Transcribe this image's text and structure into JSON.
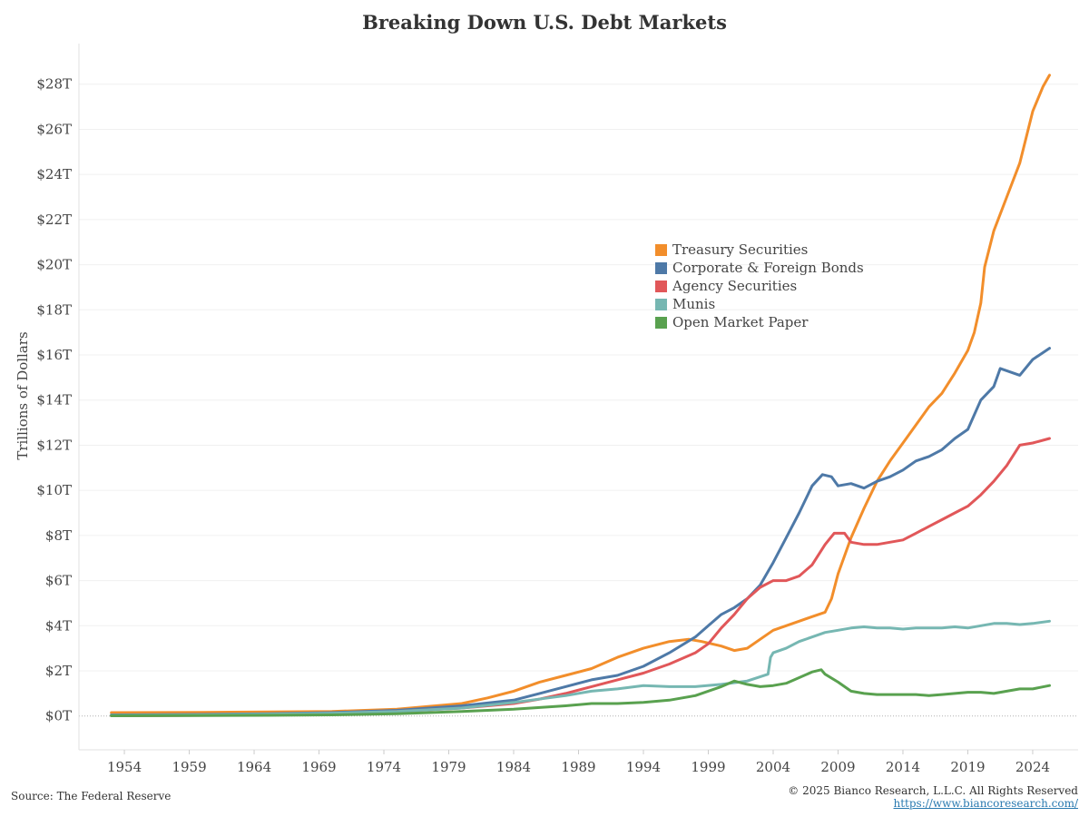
{
  "chart_data": {
    "type": "line",
    "title": "Breaking Down U.S. Debt Markets",
    "ylabel": "Trillions of Dollars",
    "xlabel": "",
    "xlim": [
      1950.5,
      2027.5
    ],
    "ylim": [
      -1.5,
      29.8
    ],
    "y_ticks": [
      0,
      2,
      4,
      6,
      8,
      10,
      12,
      14,
      16,
      18,
      20,
      22,
      24,
      26,
      28
    ],
    "y_tick_labels": [
      "$0T",
      "$2T",
      "$4T",
      "$6T",
      "$8T",
      "$10T",
      "$12T",
      "$14T",
      "$16T",
      "$18T",
      "$20T",
      "$22T",
      "$24T",
      "$26T",
      "$28T"
    ],
    "x_ticks": [
      1954,
      1959,
      1964,
      1969,
      1974,
      1979,
      1984,
      1989,
      1994,
      1999,
      2004,
      2009,
      2014,
      2019,
      2024
    ],
    "x_tick_labels": [
      "1954",
      "1959",
      "1964",
      "1969",
      "1974",
      "1979",
      "1984",
      "1989",
      "1994",
      "1999",
      "2004",
      "2009",
      "2014",
      "2019",
      "2024"
    ],
    "grid": "horizontal",
    "legend_position": "center-right",
    "series": [
      {
        "name": "Treasury Securities",
        "color": "#f28e2b",
        "x": [
          1953,
          1960,
          1965,
          1970,
          1975,
          1978,
          1980,
          1982,
          1984,
          1986,
          1988,
          1990,
          1992,
          1994,
          1996,
          1997.5,
          1998.5,
          2000,
          2001,
          2002,
          2003,
          2004,
          2005,
          2006,
          2007,
          2008,
          2008.5,
          2009,
          2010,
          2011,
          2012,
          2013,
          2014,
          2015,
          2016,
          2017,
          2018,
          2019,
          2019.5,
          2020,
          2020.3,
          2021,
          2022,
          2023,
          2024,
          2024.8,
          2025.3
        ],
        "values": [
          0.15,
          0.16,
          0.18,
          0.2,
          0.3,
          0.45,
          0.55,
          0.8,
          1.1,
          1.5,
          1.8,
          2.1,
          2.6,
          3.0,
          3.3,
          3.4,
          3.3,
          3.1,
          2.9,
          3.0,
          3.4,
          3.8,
          4.0,
          4.2,
          4.4,
          4.6,
          5.2,
          6.3,
          7.9,
          9.2,
          10.4,
          11.3,
          12.1,
          12.9,
          13.7,
          14.3,
          15.2,
          16.2,
          17.0,
          18.3,
          19.9,
          21.5,
          23.0,
          24.5,
          26.8,
          27.9,
          28.4
        ]
      },
      {
        "name": "Corporate & Foreign Bonds",
        "color": "#4e79a7",
        "x": [
          1953,
          1960,
          1965,
          1970,
          1975,
          1980,
          1984,
          1986,
          1988,
          1990,
          1992,
          1994,
          1996,
          1998,
          1999,
          2000,
          2001,
          2002,
          2003,
          2004,
          2005,
          2006,
          2007,
          2007.8,
          2008.5,
          2009,
          2010,
          2011,
          2012,
          2013,
          2014,
          2015,
          2016,
          2017,
          2018,
          2019,
          2020,
          2021,
          2021.5,
          2022,
          2023,
          2024,
          2025.3
        ],
        "values": [
          0.05,
          0.07,
          0.1,
          0.15,
          0.25,
          0.45,
          0.7,
          1.0,
          1.3,
          1.6,
          1.8,
          2.2,
          2.8,
          3.5,
          4.0,
          4.5,
          4.8,
          5.2,
          5.8,
          6.8,
          7.9,
          9.0,
          10.2,
          10.7,
          10.6,
          10.2,
          10.3,
          10.1,
          10.4,
          10.6,
          10.9,
          11.3,
          11.5,
          11.8,
          12.3,
          12.7,
          14.0,
          14.6,
          15.4,
          15.3,
          15.1,
          15.8,
          16.3
        ]
      },
      {
        "name": "Agency Securities",
        "color": "#e15759",
        "x": [
          1953,
          1960,
          1965,
          1970,
          1975,
          1980,
          1984,
          1986,
          1988,
          1990,
          1992,
          1994,
          1996,
          1998,
          1999,
          2000,
          2001,
          2002,
          2003,
          2004,
          2005,
          2006,
          2007,
          2008,
          2008.7,
          2009.5,
          2010,
          2011,
          2012,
          2013,
          2014,
          2015,
          2016,
          2017,
          2018,
          2019,
          2020,
          2021,
          2022,
          2023,
          2024,
          2025.3
        ],
        "values": [
          0.01,
          0.03,
          0.05,
          0.1,
          0.2,
          0.35,
          0.55,
          0.75,
          1.0,
          1.3,
          1.6,
          1.9,
          2.3,
          2.8,
          3.2,
          3.9,
          4.5,
          5.2,
          5.7,
          6.0,
          6.0,
          6.2,
          6.7,
          7.6,
          8.1,
          8.1,
          7.7,
          7.6,
          7.6,
          7.7,
          7.8,
          8.1,
          8.4,
          8.7,
          9.0,
          9.3,
          9.8,
          10.4,
          11.1,
          12.0,
          12.1,
          12.3
        ]
      },
      {
        "name": "Munis",
        "color": "#76b7b2",
        "x": [
          1953,
          1960,
          1965,
          1970,
          1975,
          1980,
          1984,
          1988,
          1990,
          1992,
          1994,
          1996,
          1998,
          2000,
          2002,
          2003.6,
          2003.8,
          2004,
          2005,
          2006,
          2007,
          2008,
          2009,
          2010,
          2011,
          2012,
          2013,
          2014,
          2015,
          2016,
          2017,
          2018,
          2019,
          2020,
          2021,
          2022,
          2023,
          2024,
          2025.3
        ],
        "values": [
          0.03,
          0.05,
          0.08,
          0.12,
          0.2,
          0.35,
          0.6,
          0.9,
          1.1,
          1.2,
          1.35,
          1.3,
          1.3,
          1.4,
          1.55,
          1.85,
          2.6,
          2.8,
          3.0,
          3.3,
          3.5,
          3.7,
          3.8,
          3.9,
          3.95,
          3.9,
          3.9,
          3.85,
          3.9,
          3.9,
          3.9,
          3.95,
          3.9,
          4.0,
          4.1,
          4.1,
          4.05,
          4.1,
          4.2
        ]
      },
      {
        "name": "Open Market Paper",
        "color": "#59a14f",
        "x": [
          1953,
          1960,
          1965,
          1970,
          1975,
          1980,
          1984,
          1988,
          1990,
          1992,
          1994,
          1996,
          1998,
          2000,
          2001,
          2002,
          2003,
          2004,
          2005,
          2006,
          2007,
          2007.7,
          2008,
          2009,
          2010,
          2011,
          2012,
          2013,
          2014,
          2015,
          2016,
          2017,
          2018,
          2019,
          2020,
          2021,
          2022,
          2023,
          2024,
          2025.3
        ],
        "values": [
          0.01,
          0.02,
          0.03,
          0.05,
          0.1,
          0.2,
          0.3,
          0.45,
          0.55,
          0.55,
          0.6,
          0.7,
          0.9,
          1.3,
          1.55,
          1.4,
          1.3,
          1.35,
          1.45,
          1.7,
          1.95,
          2.05,
          1.85,
          1.5,
          1.1,
          1.0,
          0.95,
          0.95,
          0.95,
          0.95,
          0.9,
          0.95,
          1.0,
          1.05,
          1.05,
          1.0,
          1.1,
          1.2,
          1.2,
          1.35
        ]
      }
    ]
  },
  "footer": {
    "source": "Source: The Federal Reserve",
    "copyright": "© 2025 Bianco Research, L.L.C. All Rights Reserved",
    "link": "https://www.biancoresearch.com/"
  }
}
